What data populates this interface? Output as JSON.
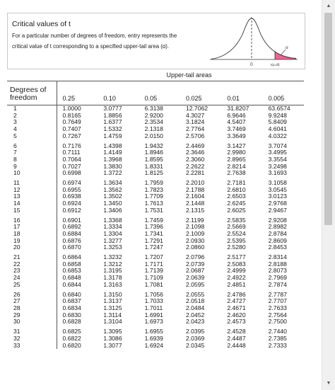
{
  "header": {
    "title": "Critical values of t",
    "description": "For a particular number of degrees of freedom, entry represents the critical value of t corresponding to a specified upper-tail area (α).",
    "alpha_label": "α",
    "zero_label": "0",
    "t_label": "t(α,df)",
    "tail_color": "#f06292"
  },
  "table": {
    "upper_tail_label": "Upper-tail areas",
    "df_header": "Degrees of freedom",
    "columns": [
      "0.25",
      "0.10",
      "0.05",
      "0.025",
      "0.01",
      "0.005"
    ],
    "rows": [
      [
        "1",
        "1.0000",
        "3.0777",
        "6.3138",
        "12.7062",
        "31.8207",
        "63.6574"
      ],
      [
        "2",
        "0.8165",
        "1.8856",
        "2.9200",
        "4.3027",
        "6.9646",
        "9.9248"
      ],
      [
        "3",
        "0.7649",
        "1.6377",
        "2.3534",
        "3.1824",
        "4.5407",
        "5.8409"
      ],
      [
        "4",
        "0.7407",
        "1.5332",
        "2.1318",
        "2.7764",
        "3.7469",
        "4.6041"
      ],
      [
        "5",
        "0.7267",
        "1.4759",
        "2.0150",
        "2.5706",
        "3.3649",
        "4.0322"
      ],
      [
        "6",
        "0.7176",
        "1.4398",
        "1.9432",
        "2.4469",
        "3.1427",
        "3.7074"
      ],
      [
        "7",
        "0.7111",
        "1.4149",
        "1.8946",
        "2.3646",
        "2.9980",
        "3.4995"
      ],
      [
        "8",
        "0.7064",
        "1.3968",
        "1.8595",
        "2.3060",
        "2.8965",
        "3.3554"
      ],
      [
        "9",
        "0.7027",
        "1.3830",
        "1.8331",
        "2.2622",
        "2.8214",
        "3.2498"
      ],
      [
        "10",
        "0.6998",
        "1.3722",
        "1.8125",
        "2.2281",
        "2.7638",
        "3.1693"
      ],
      [
        "11",
        "0.6974",
        "1.3634",
        "1.7959",
        "2.2010",
        "2.7181",
        "3.1058"
      ],
      [
        "12",
        "0.6955",
        "1.3562",
        "1.7823",
        "2.1788",
        "2.6810",
        "3.0545"
      ],
      [
        "13",
        "0.6938",
        "1.3502",
        "1.7709",
        "2.1604",
        "2.6503",
        "3.0123"
      ],
      [
        "14",
        "0.6924",
        "1.3450",
        "1.7613",
        "2.1448",
        "2.6245",
        "2.9768"
      ],
      [
        "15",
        "0.6912",
        "1.3406",
        "1.7531",
        "2.1315",
        "2.6025",
        "2.9467"
      ],
      [
        "16",
        "0.6901",
        "1.3368",
        "1.7459",
        "2.1199",
        "2.5835",
        "2.9208"
      ],
      [
        "17",
        "0.6892",
        "1.3334",
        "1.7396",
        "2.1098",
        "2.5669",
        "2.8982"
      ],
      [
        "18",
        "0.6884",
        "1.3304",
        "1.7341",
        "2.1009",
        "2.5524",
        "2.8784"
      ],
      [
        "19",
        "0.6876",
        "1.3277",
        "1.7291",
        "2.0930",
        "2.5395",
        "2.8609"
      ],
      [
        "20",
        "0.6870",
        "1.3253",
        "1.7247",
        "2.0860",
        "2.5280",
        "2.8453"
      ],
      [
        "21",
        "0.6864",
        "1.3232",
        "1.7207",
        "2.0796",
        "2.5177",
        "2.8314"
      ],
      [
        "22",
        "0.6858",
        "1.3212",
        "1.7171",
        "2.0739",
        "2.5083",
        "2.8188"
      ],
      [
        "23",
        "0.6853",
        "1.3195",
        "1.7139",
        "2.0687",
        "2.4999",
        "2.8073"
      ],
      [
        "24",
        "0.6848",
        "1.3178",
        "1.7109",
        "2.0639",
        "2.4922",
        "2.7969"
      ],
      [
        "25",
        "0.6844",
        "1.3163",
        "1.7081",
        "2.0595",
        "2.4851",
        "2.7874"
      ],
      [
        "26",
        "0.6840",
        "1.3150",
        "1.7056",
        "2.0555",
        "2.4786",
        "2.7787"
      ],
      [
        "27",
        "0.6837",
        "1.3137",
        "1.7033",
        "2.0518",
        "2.4727",
        "2.7707"
      ],
      [
        "28",
        "0.6834",
        "1.3125",
        "1.7011",
        "2.0484",
        "2.4671",
        "2.7633"
      ],
      [
        "29",
        "0.6830",
        "1.3114",
        "1.6991",
        "2.0452",
        "2.4620",
        "2.7564"
      ],
      [
        "30",
        "0.6828",
        "1.3104",
        "1.6973",
        "2.0423",
        "2.4573",
        "2.7500"
      ],
      [
        "31",
        "0.6825",
        "1.3095",
        "1.6955",
        "2.0395",
        "2.4528",
        "2.7440"
      ],
      [
        "32",
        "0.6822",
        "1.3086",
        "1.6939",
        "2.0369",
        "2.4487",
        "2.7385"
      ],
      [
        "33",
        "0.6820",
        "1.3077",
        "1.6924",
        "2.0345",
        "2.4448",
        "2.7333"
      ]
    ]
  },
  "scrollbar": {
    "up_icon": "scroll-up-arrow",
    "down_icon": "scroll-down-arrow"
  }
}
